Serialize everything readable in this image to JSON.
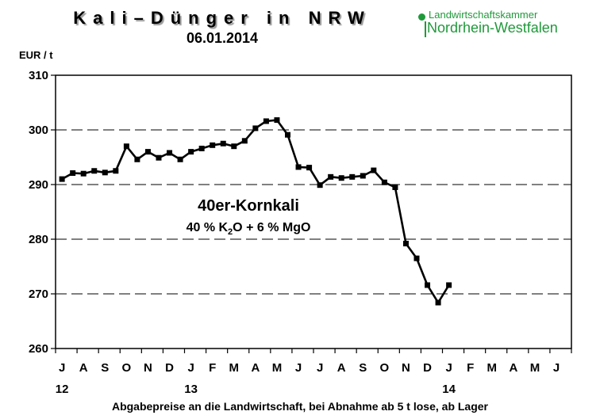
{
  "header": {
    "title": "Kali–Dünger in NRW",
    "date": "06.01.2014",
    "logo_line1": "Landwirtschaftskammer",
    "logo_line2": "Nordrhein-Westfalen",
    "logo_color": "#1f9a3a"
  },
  "footer": "Abgabepreise an die Landwirtschaft, bei Abnahme ab 5 t lose, ab Lager",
  "chart_data": {
    "type": "line",
    "ylabel": "EUR / t",
    "ylim": [
      260,
      310
    ],
    "yticks": [
      260,
      270,
      280,
      290,
      300,
      310
    ],
    "grid": "dashed horizontal",
    "month_labels": [
      "J",
      "A",
      "S",
      "O",
      "N",
      "D",
      "J",
      "F",
      "M",
      "A",
      "M",
      "J",
      "J",
      "A",
      "S",
      "O",
      "N",
      "D",
      "J",
      "F",
      "M",
      "A",
      "M",
      "J"
    ],
    "year_labels": [
      {
        "label": "12",
        "month_index": 0
      },
      {
        "label": "13",
        "month_index": 6
      },
      {
        "label": "14",
        "month_index": 18
      }
    ],
    "annotation": {
      "name": "40er-Kornkali",
      "composition_parts": [
        "40 %  K",
        "2",
        "O + 6 % MgO"
      ]
    },
    "series": [
      {
        "color": "#000000",
        "marker": "square",
        "x": [
          0,
          0.5,
          1,
          1.5,
          2,
          2.5,
          3,
          3.5,
          4,
          4.5,
          5,
          5.5,
          6,
          6.5,
          7,
          7.5,
          8,
          8.5,
          9,
          9.5,
          10,
          10.5,
          11,
          11.5,
          12,
          12.5,
          13,
          13.5,
          14,
          14.5,
          15,
          15.5,
          16,
          16.5,
          17,
          17.5,
          18
        ],
        "values": [
          291,
          292.1,
          292,
          292.5,
          292.2,
          292.5,
          297,
          294.6,
          296,
          294.9,
          295.8,
          294.6,
          296,
          296.6,
          297.2,
          297.5,
          297,
          298,
          300.3,
          301.6,
          301.8,
          299.1,
          293.2,
          293.1,
          289.9,
          291.4,
          291.2,
          291.4,
          291.6,
          292.6,
          290.4,
          289.5,
          279.2,
          276.5,
          271.6,
          268.4,
          271.6
        ]
      }
    ]
  }
}
